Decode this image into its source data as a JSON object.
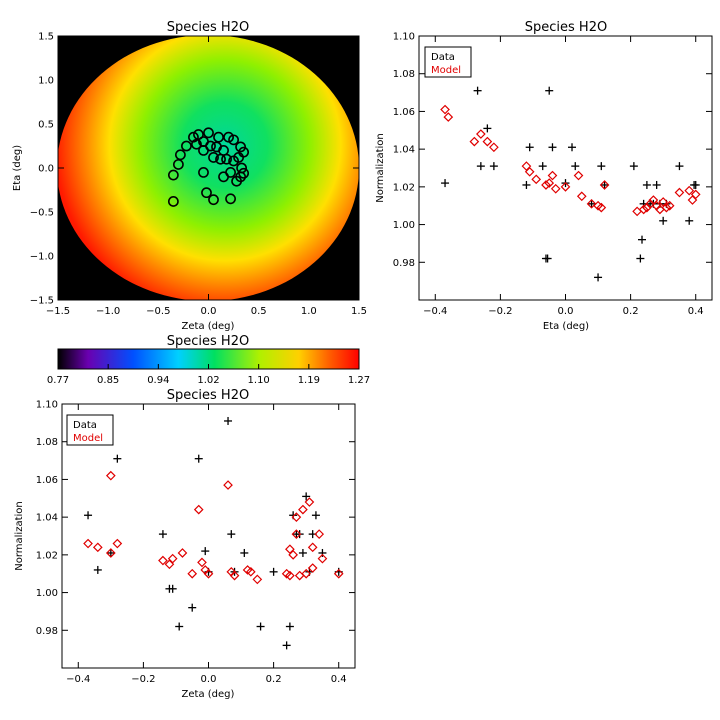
{
  "map_panel": {
    "title": "Species H2O",
    "xlabel": "Zeta (deg)",
    "ylabel": "Eta (deg)",
    "xticks": [
      "-1.5",
      "-1.0",
      "-0.5",
      "0.0",
      "0.5",
      "1.0",
      "1.5"
    ],
    "yticks": [
      "-1.5",
      "-1.0",
      "-0.5",
      "0.0",
      "0.5",
      "1.0",
      "1.5"
    ]
  },
  "colorbar": {
    "title": "Species H2O",
    "ticks": [
      "0.77",
      "0.85",
      "0.94",
      "1.02",
      "1.10",
      "1.19",
      "1.27"
    ]
  },
  "eta_panel": {
    "title": "Species H2O",
    "xlabel": "Eta (deg)",
    "ylabel": "Normalization",
    "xticks": [
      "-0.4",
      "-0.2",
      "0.0",
      "0.2",
      "0.4"
    ],
    "yticks": [
      "0.98",
      "1.00",
      "1.02",
      "1.04",
      "1.06",
      "1.08",
      "1.10"
    ],
    "legend": {
      "data": "Data",
      "model": "Model"
    }
  },
  "zeta_panel": {
    "title": "Species H2O",
    "xlabel": "Zeta (deg)",
    "ylabel": "Normalization",
    "xticks": [
      "-0.4",
      "-0.2",
      "0.0",
      "0.2",
      "0.4"
    ],
    "yticks": [
      "0.98",
      "1.00",
      "1.02",
      "1.04",
      "1.06",
      "1.08",
      "1.10"
    ],
    "legend": {
      "data": "Data",
      "model": "Model"
    }
  },
  "colors": {
    "data": "#000000",
    "model": "#e00000",
    "map_background": "#000000"
  },
  "chart_data": [
    {
      "type": "heatmap",
      "title": "Species H2O",
      "xlabel": "Zeta (deg)",
      "ylabel": "Eta (deg)",
      "xlim": [
        -1.5,
        1.5
      ],
      "ylim": [
        -1.5,
        1.5
      ],
      "colorbar": {
        "min": 0.77,
        "max": 1.27,
        "palette": "rainbow"
      },
      "field": {
        "center": [
          0.1,
          0.15
        ],
        "peak": 1.03,
        "edge": 1.27
      },
      "markers": [
        {
          "x": -0.28,
          "y": 0.15
        },
        {
          "x": -0.3,
          "y": 0.04
        },
        {
          "x": -0.35,
          "y": -0.08
        },
        {
          "x": -0.35,
          "y": -0.38
        },
        {
          "x": -0.22,
          "y": 0.25
        },
        {
          "x": -0.15,
          "y": 0.35
        },
        {
          "x": -0.1,
          "y": 0.38
        },
        {
          "x": -0.12,
          "y": 0.27
        },
        {
          "x": -0.05,
          "y": 0.3
        },
        {
          "x": 0.0,
          "y": 0.4
        },
        {
          "x": 0.02,
          "y": 0.25
        },
        {
          "x": -0.05,
          "y": 0.2
        },
        {
          "x": 0.1,
          "y": 0.35
        },
        {
          "x": 0.08,
          "y": 0.24
        },
        {
          "x": 0.15,
          "y": 0.2
        },
        {
          "x": 0.2,
          "y": 0.35
        },
        {
          "x": 0.25,
          "y": 0.32
        },
        {
          "x": 0.32,
          "y": 0.24
        },
        {
          "x": 0.35,
          "y": 0.18
        },
        {
          "x": 0.3,
          "y": 0.12
        },
        {
          "x": 0.25,
          "y": 0.08
        },
        {
          "x": 0.18,
          "y": 0.1
        },
        {
          "x": 0.12,
          "y": 0.1
        },
        {
          "x": 0.05,
          "y": 0.12
        },
        {
          "x": 0.33,
          "y": 0.0
        },
        {
          "x": 0.32,
          "y": -0.1
        },
        {
          "x": 0.28,
          "y": -0.15
        },
        {
          "x": 0.22,
          "y": -0.05
        },
        {
          "x": 0.15,
          "y": -0.1
        },
        {
          "x": -0.05,
          "y": -0.05
        },
        {
          "x": -0.02,
          "y": -0.28
        },
        {
          "x": 0.05,
          "y": -0.36
        },
        {
          "x": 0.22,
          "y": -0.35
        },
        {
          "x": 0.35,
          "y": -0.06
        }
      ]
    },
    {
      "type": "scatter",
      "title": "Species H2O",
      "xlabel": "Eta (deg)",
      "ylabel": "Normalization",
      "xlim": [
        -0.45,
        0.45
      ],
      "ylim": [
        0.96,
        1.1
      ],
      "series": [
        {
          "name": "Data",
          "marker": "plus",
          "points": [
            [
              -0.37,
              1.022
            ],
            [
              -0.27,
              1.071
            ],
            [
              -0.26,
              1.031
            ],
            [
              -0.24,
              1.051
            ],
            [
              -0.22,
              1.031
            ],
            [
              -0.12,
              1.021
            ],
            [
              -0.11,
              1.041
            ],
            [
              -0.07,
              1.031
            ],
            [
              -0.06,
              0.982
            ],
            [
              -0.055,
              0.982
            ],
            [
              -0.05,
              1.071
            ],
            [
              -0.04,
              1.041
            ],
            [
              0.0,
              1.022
            ],
            [
              0.02,
              1.041
            ],
            [
              0.03,
              1.031
            ],
            [
              0.08,
              1.011
            ],
            [
              0.1,
              0.972
            ],
            [
              0.11,
              1.031
            ],
            [
              0.12,
              1.021
            ],
            [
              0.21,
              1.031
            ],
            [
              0.23,
              0.982
            ],
            [
              0.235,
              0.992
            ],
            [
              0.24,
              1.011
            ],
            [
              0.25,
              1.021
            ],
            [
              0.26,
              1.011
            ],
            [
              0.27,
              1.011
            ],
            [
              0.28,
              1.021
            ],
            [
              0.29,
              1.011
            ],
            [
              0.3,
              1.002
            ],
            [
              0.31,
              1.011
            ],
            [
              0.35,
              1.031
            ],
            [
              0.38,
              1.002
            ],
            [
              0.395,
              1.021
            ],
            [
              0.4,
              1.021
            ]
          ]
        },
        {
          "name": "Model",
          "marker": "diamond",
          "points": [
            [
              -0.37,
              1.061
            ],
            [
              -0.36,
              1.057
            ],
            [
              -0.28,
              1.044
            ],
            [
              -0.26,
              1.048
            ],
            [
              -0.24,
              1.044
            ],
            [
              -0.22,
              1.041
            ],
            [
              -0.12,
              1.031
            ],
            [
              -0.11,
              1.028
            ],
            [
              -0.09,
              1.024
            ],
            [
              -0.06,
              1.021
            ],
            [
              -0.05,
              1.022
            ],
            [
              -0.04,
              1.026
            ],
            [
              -0.03,
              1.019
            ],
            [
              0.0,
              1.02
            ],
            [
              0.04,
              1.026
            ],
            [
              0.05,
              1.015
            ],
            [
              0.08,
              1.011
            ],
            [
              0.1,
              1.01
            ],
            [
              0.11,
              1.009
            ],
            [
              0.12,
              1.021
            ],
            [
              0.22,
              1.007
            ],
            [
              0.24,
              1.008
            ],
            [
              0.25,
              1.009
            ],
            [
              0.26,
              1.011
            ],
            [
              0.27,
              1.013
            ],
            [
              0.28,
              1.01
            ],
            [
              0.29,
              1.008
            ],
            [
              0.3,
              1.012
            ],
            [
              0.31,
              1.009
            ],
            [
              0.32,
              1.01
            ],
            [
              0.35,
              1.017
            ],
            [
              0.38,
              1.018
            ],
            [
              0.39,
              1.013
            ],
            [
              0.4,
              1.016
            ]
          ]
        }
      ]
    },
    {
      "type": "scatter",
      "title": "Species H2O",
      "xlabel": "Zeta (deg)",
      "ylabel": "Normalization",
      "xlim": [
        -0.45,
        0.45
      ],
      "ylim": [
        0.96,
        1.1
      ],
      "series": [
        {
          "name": "Data",
          "marker": "plus",
          "points": [
            [
              -0.37,
              1.041
            ],
            [
              -0.34,
              1.012
            ],
            [
              -0.3,
              1.021
            ],
            [
              -0.28,
              1.071
            ],
            [
              -0.14,
              1.031
            ],
            [
              -0.12,
              1.002
            ],
            [
              -0.11,
              1.002
            ],
            [
              -0.09,
              0.982
            ],
            [
              -0.05,
              0.992
            ],
            [
              -0.03,
              1.071
            ],
            [
              -0.01,
              1.022
            ],
            [
              0.0,
              1.011
            ],
            [
              0.06,
              1.091
            ],
            [
              0.07,
              1.031
            ],
            [
              0.08,
              1.011
            ],
            [
              0.11,
              1.021
            ],
            [
              0.16,
              0.982
            ],
            [
              0.2,
              1.011
            ],
            [
              0.24,
              0.972
            ],
            [
              0.25,
              0.982
            ],
            [
              0.26,
              1.041
            ],
            [
              0.27,
              1.031
            ],
            [
              0.28,
              1.031
            ],
            [
              0.29,
              1.021
            ],
            [
              0.3,
              1.051
            ],
            [
              0.31,
              1.011
            ],
            [
              0.32,
              1.031
            ],
            [
              0.33,
              1.041
            ],
            [
              0.35,
              1.021
            ],
            [
              0.4,
              1.011
            ]
          ]
        },
        {
          "name": "Model",
          "marker": "diamond",
          "points": [
            [
              -0.37,
              1.026
            ],
            [
              -0.34,
              1.024
            ],
            [
              -0.3,
              1.021
            ],
            [
              -0.3,
              1.062
            ],
            [
              -0.28,
              1.026
            ],
            [
              -0.14,
              1.017
            ],
            [
              -0.12,
              1.015
            ],
            [
              -0.11,
              1.018
            ],
            [
              -0.08,
              1.021
            ],
            [
              -0.05,
              1.01
            ],
            [
              -0.03,
              1.044
            ],
            [
              -0.02,
              1.016
            ],
            [
              -0.01,
              1.012
            ],
            [
              0.0,
              1.01
            ],
            [
              0.06,
              1.057
            ],
            [
              0.07,
              1.011
            ],
            [
              0.08,
              1.009
            ],
            [
              0.12,
              1.012
            ],
            [
              0.13,
              1.011
            ],
            [
              0.15,
              1.007
            ],
            [
              0.24,
              1.01
            ],
            [
              0.25,
              1.023
            ],
            [
              0.25,
              1.009
            ],
            [
              0.26,
              1.02
            ],
            [
              0.27,
              1.031
            ],
            [
              0.27,
              1.04
            ],
            [
              0.28,
              1.009
            ],
            [
              0.29,
              1.044
            ],
            [
              0.3,
              1.01
            ],
            [
              0.31,
              1.048
            ],
            [
              0.32,
              1.024
            ],
            [
              0.32,
              1.013
            ],
            [
              0.34,
              1.031
            ],
            [
              0.35,
              1.018
            ],
            [
              0.4,
              1.01
            ]
          ]
        }
      ]
    }
  ]
}
